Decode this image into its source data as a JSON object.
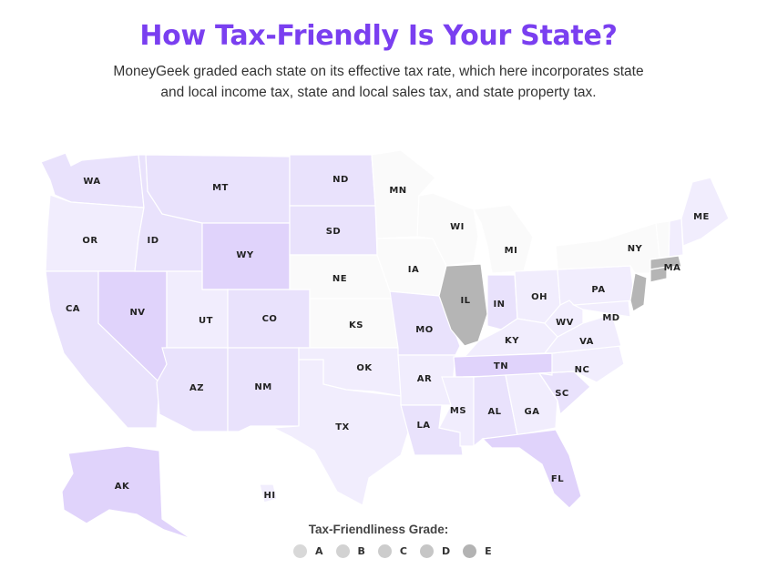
{
  "title": "How Tax-Friendly Is Your State?",
  "subtitle": "MoneyGeek graded each state on its effective tax rate, which here incorporates state and local income tax, state and local sales tax, and state property tax.",
  "legend": {
    "title": "Tax-Friendliness Grade:",
    "items": [
      {
        "label": "A",
        "color": "#d8d8d8"
      },
      {
        "label": "B",
        "color": "#d2d2d2"
      },
      {
        "label": "C",
        "color": "#cccccc"
      },
      {
        "label": "D",
        "color": "#c6c6c6"
      },
      {
        "label": "E",
        "color": "#b3b3b3"
      }
    ]
  },
  "grade_colors": {
    "A": "#e0d3fb",
    "B": "#e9e2fc",
    "C": "#f1edfd",
    "D": "#fafafa",
    "E": "#b5b5b5"
  },
  "states": [
    {
      "id": "WA",
      "label": "WA",
      "grade": "B"
    },
    {
      "id": "OR",
      "label": "OR",
      "grade": "C"
    },
    {
      "id": "CA",
      "label": "CA",
      "grade": "B"
    },
    {
      "id": "NV",
      "label": "NV",
      "grade": "A"
    },
    {
      "id": "ID",
      "label": "ID",
      "grade": "B"
    },
    {
      "id": "MT",
      "label": "MT",
      "grade": "B"
    },
    {
      "id": "WY",
      "label": "WY",
      "grade": "A"
    },
    {
      "id": "UT",
      "label": "UT",
      "grade": "C"
    },
    {
      "id": "CO",
      "label": "CO",
      "grade": "B"
    },
    {
      "id": "AZ",
      "label": "AZ",
      "grade": "B"
    },
    {
      "id": "NM",
      "label": "NM",
      "grade": "B"
    },
    {
      "id": "ND",
      "label": "ND",
      "grade": "B"
    },
    {
      "id": "SD",
      "label": "SD",
      "grade": "B"
    },
    {
      "id": "NE",
      "label": "NE",
      "grade": "D"
    },
    {
      "id": "KS",
      "label": "KS",
      "grade": "D"
    },
    {
      "id": "OK",
      "label": "OK",
      "grade": "C"
    },
    {
      "id": "TX",
      "label": "TX",
      "grade": "C"
    },
    {
      "id": "MN",
      "label": "MN",
      "grade": "D"
    },
    {
      "id": "IA",
      "label": "IA",
      "grade": "D"
    },
    {
      "id": "MO",
      "label": "MO",
      "grade": "B"
    },
    {
      "id": "AR",
      "label": "AR",
      "grade": "C"
    },
    {
      "id": "LA",
      "label": "LA",
      "grade": "B"
    },
    {
      "id": "WI",
      "label": "WI",
      "grade": "D"
    },
    {
      "id": "IL",
      "label": "IL",
      "grade": "E"
    },
    {
      "id": "MI",
      "label": "MI",
      "grade": "D"
    },
    {
      "id": "IN",
      "label": "IN",
      "grade": "B"
    },
    {
      "id": "OH",
      "label": "OH",
      "grade": "C"
    },
    {
      "id": "KY",
      "label": "KY",
      "grade": "C"
    },
    {
      "id": "TN",
      "label": "TN",
      "grade": "A"
    },
    {
      "id": "MS",
      "label": "MS",
      "grade": "C"
    },
    {
      "id": "AL",
      "label": "AL",
      "grade": "B"
    },
    {
      "id": "GA",
      "label": "GA",
      "grade": "C"
    },
    {
      "id": "FL",
      "label": "FL",
      "grade": "A"
    },
    {
      "id": "SC",
      "label": "SC",
      "grade": "B"
    },
    {
      "id": "NC",
      "label": "NC",
      "grade": "C"
    },
    {
      "id": "VA",
      "label": "VA",
      "grade": "C"
    },
    {
      "id": "WV",
      "label": "WV",
      "grade": "C"
    },
    {
      "id": "MD",
      "label": "MD",
      "grade": "C"
    },
    {
      "id": "PA",
      "label": "PA",
      "grade": "C"
    },
    {
      "id": "NY",
      "label": "NY",
      "grade": "D"
    },
    {
      "id": "NJ",
      "label": "",
      "grade": "E"
    },
    {
      "id": "CT",
      "label": "",
      "grade": "E"
    },
    {
      "id": "MA",
      "label": "MA",
      "grade": "E"
    },
    {
      "id": "ME",
      "label": "ME",
      "grade": "C"
    },
    {
      "id": "NH",
      "label": "",
      "grade": "C"
    },
    {
      "id": "VT",
      "label": "",
      "grade": "D"
    },
    {
      "id": "AK",
      "label": "AK",
      "grade": "A"
    },
    {
      "id": "HI",
      "label": "HI",
      "grade": "C"
    }
  ]
}
